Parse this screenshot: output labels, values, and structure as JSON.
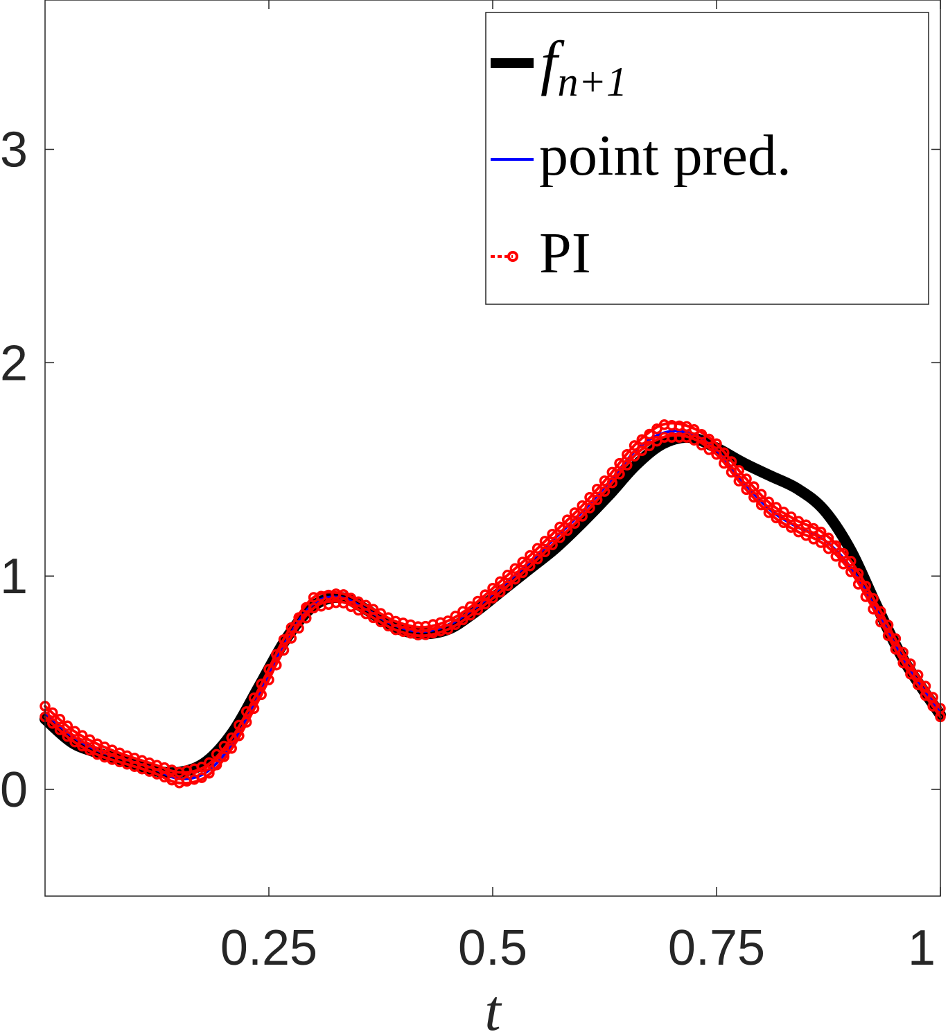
{
  "chart_data": {
    "type": "line",
    "xlabel": "t",
    "ylabel": "",
    "xlim": [
      0,
      1
    ],
    "ylim": [
      -0.5,
      3.7
    ],
    "x_ticks": [
      0.25,
      0.5,
      0.75,
      1
    ],
    "x_tick_labels": [
      "0.25",
      "0.5",
      "0.75",
      "1"
    ],
    "y_ticks": [
      0,
      1,
      2,
      3
    ],
    "y_tick_labels": [
      "0",
      "1",
      "2",
      "3"
    ],
    "grid": false,
    "legend_position": "top-right",
    "legend": [
      {
        "main": "f",
        "sub": "n+1",
        "color": "#000000",
        "style": "thick-line"
      },
      {
        "main": "point pred.",
        "color": "#0000ff",
        "style": "line"
      },
      {
        "main": "PI",
        "color": "#ff0000",
        "style": "line-markers"
      }
    ],
    "series": [
      {
        "name": "f_{n+1}",
        "color": "#000000",
        "x": [
          0,
          0.03,
          0.06,
          0.09,
          0.12,
          0.15,
          0.18,
          0.21,
          0.24,
          0.27,
          0.3,
          0.33,
          0.36,
          0.39,
          0.42,
          0.45,
          0.48,
          0.51,
          0.54,
          0.57,
          0.6,
          0.63,
          0.66,
          0.69,
          0.72,
          0.75,
          0.78,
          0.81,
          0.84,
          0.87,
          0.9,
          0.93,
          0.96,
          1.0
        ],
        "y": [
          0.33,
          0.22,
          0.17,
          0.13,
          0.09,
          0.08,
          0.13,
          0.27,
          0.49,
          0.71,
          0.86,
          0.9,
          0.84,
          0.76,
          0.73,
          0.75,
          0.83,
          0.93,
          1.03,
          1.13,
          1.25,
          1.38,
          1.52,
          1.62,
          1.65,
          1.6,
          1.53,
          1.47,
          1.41,
          1.31,
          1.12,
          0.85,
          0.6,
          0.35
        ]
      },
      {
        "name": "point pred.",
        "color": "#0000ff",
        "x": [
          0,
          0.03,
          0.06,
          0.09,
          0.12,
          0.15,
          0.18,
          0.21,
          0.24,
          0.27,
          0.3,
          0.33,
          0.36,
          0.39,
          0.42,
          0.45,
          0.48,
          0.51,
          0.54,
          0.57,
          0.6,
          0.63,
          0.66,
          0.69,
          0.72,
          0.75,
          0.78,
          0.81,
          0.84,
          0.87,
          0.9,
          0.93,
          0.96,
          1.0
        ],
        "y": [
          0.36,
          0.25,
          0.18,
          0.14,
          0.1,
          0.05,
          0.08,
          0.22,
          0.45,
          0.7,
          0.87,
          0.9,
          0.84,
          0.77,
          0.74,
          0.77,
          0.85,
          0.95,
          1.06,
          1.18,
          1.3,
          1.44,
          1.59,
          1.67,
          1.67,
          1.59,
          1.44,
          1.31,
          1.23,
          1.17,
          1.04,
          0.83,
          0.6,
          0.36
        ]
      },
      {
        "name": "PI lower",
        "color": "#ff0000",
        "x": [
          0,
          0.03,
          0.06,
          0.09,
          0.12,
          0.15,
          0.18,
          0.21,
          0.24,
          0.27,
          0.3,
          0.33,
          0.36,
          0.39,
          0.42,
          0.45,
          0.48,
          0.51,
          0.54,
          0.57,
          0.6,
          0.63,
          0.66,
          0.69,
          0.72,
          0.75,
          0.78,
          0.81,
          0.84,
          0.87,
          0.9,
          0.93,
          0.96,
          1.0
        ],
        "y": [
          0.34,
          0.23,
          0.16,
          0.12,
          0.08,
          0.03,
          0.06,
          0.2,
          0.43,
          0.68,
          0.85,
          0.88,
          0.82,
          0.75,
          0.72,
          0.75,
          0.83,
          0.93,
          1.04,
          1.16,
          1.28,
          1.42,
          1.57,
          1.65,
          1.65,
          1.57,
          1.42,
          1.29,
          1.21,
          1.15,
          1.02,
          0.81,
          0.58,
          0.34
        ]
      },
      {
        "name": "PI upper",
        "color": "#ff0000",
        "x": [
          0,
          0.03,
          0.06,
          0.09,
          0.12,
          0.15,
          0.18,
          0.21,
          0.24,
          0.27,
          0.3,
          0.33,
          0.36,
          0.39,
          0.42,
          0.45,
          0.48,
          0.51,
          0.54,
          0.57,
          0.6,
          0.63,
          0.66,
          0.69,
          0.72,
          0.75,
          0.78,
          0.81,
          0.84,
          0.87,
          0.9,
          0.93,
          0.96,
          1.0
        ],
        "y": [
          0.39,
          0.28,
          0.21,
          0.16,
          0.12,
          0.08,
          0.11,
          0.25,
          0.48,
          0.73,
          0.9,
          0.92,
          0.86,
          0.79,
          0.76,
          0.79,
          0.87,
          0.98,
          1.09,
          1.21,
          1.33,
          1.47,
          1.62,
          1.71,
          1.7,
          1.62,
          1.47,
          1.34,
          1.26,
          1.2,
          1.07,
          0.86,
          0.63,
          0.38
        ]
      }
    ]
  }
}
